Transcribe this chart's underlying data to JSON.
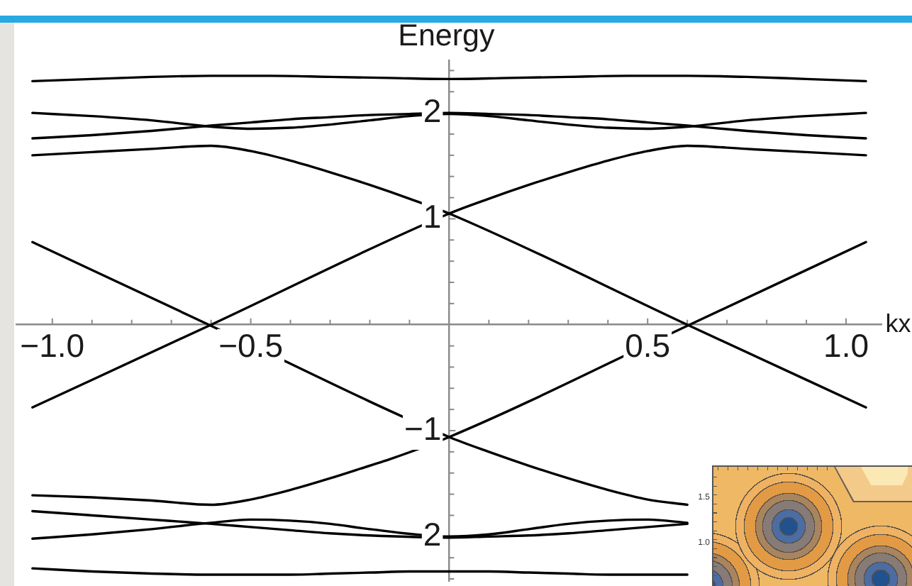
{
  "chart_data": {
    "type": "line",
    "xlabel": "kx",
    "ylabel": "Energy",
    "x": [
      -1.05,
      -0.9,
      -0.75,
      -0.6,
      -0.5,
      -0.4,
      -0.3,
      -0.2,
      -0.1,
      0,
      0.1,
      0.2,
      0.3,
      0.4,
      0.5,
      0.6,
      0.75,
      0.9,
      1.05
    ],
    "series": [
      {
        "color": "#000000",
        "x": [
          -1.05,
          -0.9,
          -0.75,
          -0.6,
          -0.45,
          -0.3,
          -0.15,
          0,
          0.15,
          0.3,
          0.45,
          0.6,
          0.75,
          0.9,
          1.05
        ],
        "values": [
          2.3,
          2.32,
          2.34,
          2.35,
          2.35,
          2.34,
          2.33,
          2.32,
          2.33,
          2.34,
          2.35,
          2.35,
          2.34,
          2.32,
          2.3
        ]
      },
      {
        "color": "#000000",
        "values": [
          2.0,
          1.97,
          1.93,
          1.87,
          1.85,
          1.86,
          1.89,
          1.93,
          1.97,
          1.99,
          1.97,
          1.93,
          1.89,
          1.86,
          1.85,
          1.87,
          1.93,
          1.97,
          2.0
        ]
      },
      {
        "color": "#000000",
        "values": [
          1.76,
          1.79,
          1.83,
          1.88,
          1.91,
          1.94,
          1.96,
          1.98,
          1.99,
          2.0,
          1.99,
          1.98,
          1.96,
          1.94,
          1.91,
          1.88,
          1.83,
          1.79,
          1.76
        ]
      },
      {
        "color": "#000000",
        "x": [
          -1.05,
          -0.6,
          0,
          0.1,
          0.2,
          0.3,
          0.4,
          0.5,
          0.6,
          0.75,
          0.9,
          1.05
        ],
        "values": [
          -0.78,
          0.0,
          1.05,
          1.19,
          1.32,
          1.44,
          1.55,
          1.64,
          1.69,
          1.66,
          1.63,
          1.6
        ]
      },
      {
        "color": "#000000",
        "x": [
          -1.05,
          -0.9,
          -0.75,
          -0.6,
          -0.5,
          -0.4,
          -0.3,
          -0.2,
          -0.1,
          0,
          0.6,
          1.05
        ],
        "values": [
          1.6,
          1.63,
          1.66,
          1.69,
          1.64,
          1.55,
          1.44,
          1.32,
          1.19,
          1.05,
          0.0,
          -0.78
        ]
      },
      {
        "color": "#000000",
        "x": [
          -1.05,
          -0.6,
          0,
          0.1,
          0.2,
          0.3,
          0.4,
          0.5,
          0.6
        ],
        "values": [
          0.78,
          -0.01,
          -1.06,
          -1.2,
          -1.33,
          -1.45,
          -1.56,
          -1.65,
          -1.7
        ]
      },
      {
        "color": "#000000",
        "x": [
          -1.05,
          -0.9,
          -0.75,
          -0.6,
          -0.5,
          -0.4,
          -0.3,
          -0.2,
          -0.15,
          0,
          0.6,
          1.05
        ],
        "values": [
          -1.61,
          -1.63,
          -1.66,
          -1.7,
          -1.65,
          -1.56,
          -1.45,
          -1.33,
          -1.27,
          -1.06,
          -0.01,
          0.78
        ]
      },
      {
        "color": "#000000",
        "x": [
          -1.05,
          -0.9,
          -0.75,
          -0.6,
          -0.5,
          -0.4,
          -0.3,
          -0.2,
          0,
          0.1,
          0.2,
          0.3,
          0.4,
          0.5,
          0.6
        ],
        "values": [
          -1.76,
          -1.8,
          -1.84,
          -1.88,
          -1.91,
          -1.94,
          -1.97,
          -1.99,
          -2.01,
          -2.0,
          -1.99,
          -1.97,
          -1.94,
          -1.91,
          -1.88
        ]
      },
      {
        "color": "#000000",
        "x": [
          -1.05,
          -0.9,
          -0.75,
          -0.6,
          -0.5,
          -0.4,
          -0.3,
          -0.2,
          0,
          0.1,
          0.2,
          0.3,
          0.4,
          0.5,
          0.6
        ],
        "values": [
          -2.02,
          -1.98,
          -1.93,
          -1.87,
          -1.84,
          -1.85,
          -1.88,
          -1.93,
          -2.0,
          -1.98,
          -1.93,
          -1.88,
          -1.85,
          -1.84,
          -1.87
        ]
      },
      {
        "color": "#000000",
        "values": [
          -2.3,
          -2.33,
          -2.35,
          -2.36,
          -2.36,
          -2.36,
          -2.35,
          -2.34,
          -2.33,
          -2.33,
          -2.33,
          -2.34,
          -2.35,
          -2.36,
          -2.36,
          -2.36,
          null,
          null,
          null
        ]
      }
    ],
    "xlim": [
      -1.09,
      1.09
    ],
    "ylim": [
      -2.42,
      2.49
    ],
    "xticks": [
      {
        "value": -1,
        "label": "−1.0"
      },
      {
        "value": -0.9,
        "label": null
      },
      {
        "value": -0.8,
        "label": null
      },
      {
        "value": -0.7,
        "label": null
      },
      {
        "value": -0.6,
        "label": null
      },
      {
        "value": -0.5,
        "label": "−0.5"
      },
      {
        "value": -0.4,
        "label": null
      },
      {
        "value": -0.3,
        "label": null
      },
      {
        "value": -0.2,
        "label": null
      },
      {
        "value": -0.1,
        "label": null
      },
      {
        "value": 0.1,
        "label": null
      },
      {
        "value": 0.2,
        "label": null
      },
      {
        "value": 0.3,
        "label": null
      },
      {
        "value": 0.4,
        "label": null
      },
      0.5,
      {
        "value": 0.6,
        "label": null
      },
      {
        "value": 0.7,
        "label": null
      },
      {
        "value": 0.8,
        "label": null
      },
      {
        "value": 0.9,
        "label": null
      },
      {
        "value": 1,
        "label": "1.0"
      }
    ],
    "yticks": [
      {
        "value": -2.4,
        "label": null
      },
      {
        "value": -2.2,
        "label": null
      },
      {
        "value": -2,
        "label": "2"
      },
      {
        "value": -1.8,
        "label": null
      },
      {
        "value": -1.6,
        "label": null
      },
      {
        "value": -1.4,
        "label": null
      },
      {
        "value": -1.2,
        "label": null
      },
      {
        "value": -1,
        "label": "−1"
      },
      {
        "value": -0.8,
        "label": null
      },
      {
        "value": -0.6,
        "label": null
      },
      {
        "value": -0.4,
        "label": null
      },
      {
        "value": -0.2,
        "label": null
      },
      {
        "value": 0.2,
        "label": null
      },
      {
        "value": 0.4,
        "label": null
      },
      {
        "value": 0.6,
        "label": null
      },
      {
        "value": 0.8,
        "label": null
      },
      1,
      {
        "value": 1.2,
        "label": null
      },
      {
        "value": 1.4,
        "label": null
      },
      {
        "value": 1.6,
        "label": null
      },
      {
        "value": 1.8,
        "label": null
      },
      2,
      {
        "value": 2.2,
        "label": null
      },
      {
        "value": 2.4,
        "label": null
      }
    ],
    "marker": "none",
    "line_style": "solid",
    "annotations": [
      "1.5",
      "1.0"
    ]
  }
}
